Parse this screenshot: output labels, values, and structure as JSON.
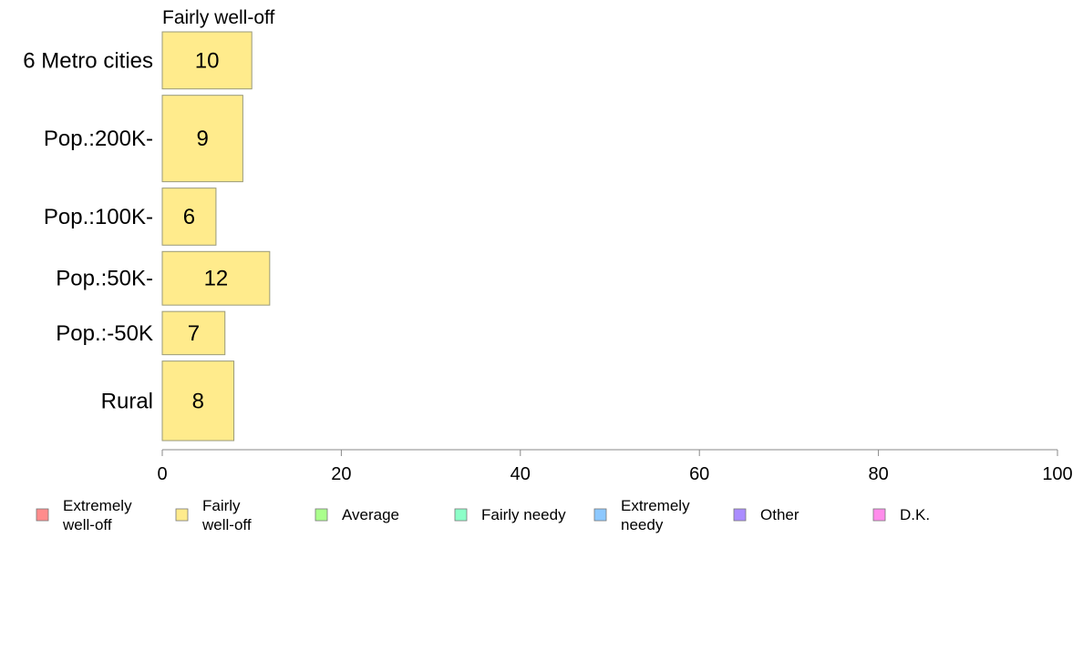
{
  "chart_data": {
    "type": "bar",
    "orientation": "horizontal",
    "panel_title": "Fairly well-off",
    "categories": [
      "6 Metro cities",
      "Pop.:200K-",
      "Pop.:100K-",
      "Pop.:50K-",
      "Pop.:-50K",
      "Rural"
    ],
    "category_weights": [
      0.66,
      1.0,
      0.66,
      0.62,
      0.5,
      0.92
    ],
    "series": [
      {
        "name": "Fairly well-off",
        "values": [
          10,
          9,
          6,
          12,
          7,
          8
        ],
        "color": "#FFEB8C"
      }
    ],
    "xlim": [
      0,
      100
    ],
    "xticks": [
      0,
      20,
      40,
      60,
      80,
      100
    ],
    "legend": {
      "position": "bottom",
      "items": [
        {
          "label": "Extremely well-off",
          "color": "#FF8C8C"
        },
        {
          "label": "Fairly well-off",
          "color": "#FFEB8C"
        },
        {
          "label": "Average",
          "color": "#AAFF8C"
        },
        {
          "label": "Fairly needy",
          "color": "#8CFFC8"
        },
        {
          "label": "Extremely needy",
          "color": "#8CC8FF"
        },
        {
          "label": "Other",
          "color": "#AA8CFF"
        },
        {
          "label": "D.K.",
          "color": "#FF8CEB"
        }
      ]
    }
  }
}
